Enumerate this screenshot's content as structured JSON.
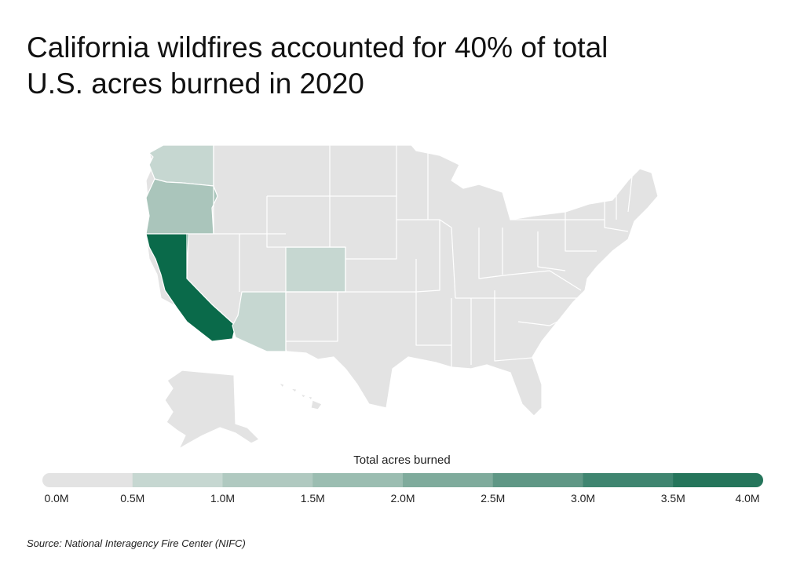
{
  "title_line1": "California wildfires accounted for 40% of total",
  "title_line2": "U.S. acres burned in 2020",
  "legend": {
    "title": "Total acres burned",
    "ticks": [
      "0.0M",
      "0.5M",
      "1.0M",
      "1.5M",
      "2.0M",
      "2.5M",
      "3.0M",
      "3.5M",
      "4.0M"
    ],
    "colors": [
      "#e3e3e3",
      "#c6d7d1",
      "#b0c9c0",
      "#9bbdb1",
      "#7fab9c",
      "#5f9785",
      "#3f8570",
      "#25755b",
      "#0a6a4a"
    ]
  },
  "state_values_millions": {
    "California": 4.0,
    "Oregon": 1.1,
    "Washington": 0.8,
    "Colorado": 0.6,
    "Arizona": 0.9
  },
  "source": "Source:  National Interagency Fire Center (NIFC)"
}
